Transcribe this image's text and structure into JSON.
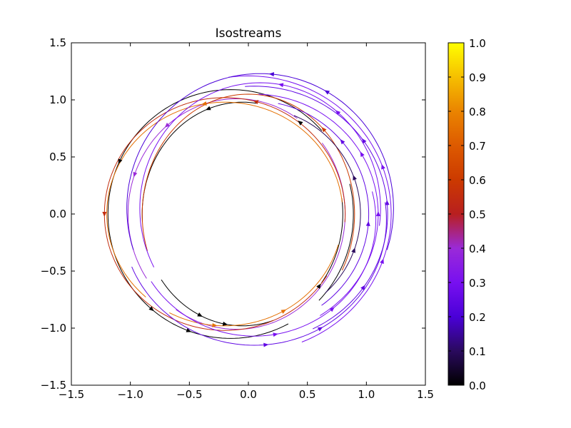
{
  "chart_data": {
    "type": "line",
    "title": "Isostreams",
    "xlabel": "",
    "ylabel": "",
    "xlim": [
      -1.5,
      1.5
    ],
    "ylim": [
      -1.5,
      1.5
    ],
    "x_ticks": [
      -1.5,
      -1.0,
      -0.5,
      0.0,
      0.5,
      1.0,
      1.5
    ],
    "y_ticks": [
      -1.5,
      -1.0,
      -0.5,
      0.0,
      0.5,
      1.0,
      1.5
    ],
    "x_tick_labels": [
      "−1.5",
      "−1.0",
      "−0.5",
      "0.0",
      "0.5",
      "1.0",
      "1.5"
    ],
    "y_tick_labels": [
      "−1.5",
      "−1.0",
      "−0.5",
      "0.0",
      "0.5",
      "1.0",
      "1.5"
    ],
    "grid": false,
    "colormap": "gnuplot",
    "colorbar": {
      "range": [
        0.0,
        1.0
      ],
      "ticks": [
        0.0,
        0.1,
        0.2,
        0.3,
        0.4,
        0.5,
        0.6,
        0.7,
        0.8,
        0.9,
        1.0
      ],
      "tick_labels": [
        "0.0",
        "0.1",
        "0.2",
        "0.3",
        "0.4",
        "0.5",
        "0.6",
        "0.7",
        "0.8",
        "0.9",
        "1.0"
      ],
      "stops": [
        {
          "v": 0.0,
          "color": "#000000"
        },
        {
          "v": 0.1,
          "color": "#2a0a5e"
        },
        {
          "v": 0.2,
          "color": "#4a00d8"
        },
        {
          "v": 0.3,
          "color": "#7810f0"
        },
        {
          "v": 0.4,
          "color": "#9a2ad8"
        },
        {
          "v": 0.5,
          "color": "#b81f1f"
        },
        {
          "v": 0.6,
          "color": "#cc3a00"
        },
        {
          "v": 0.7,
          "color": "#dd5a00"
        },
        {
          "v": 0.8,
          "color": "#ea8400"
        },
        {
          "v": 0.9,
          "color": "#f6bf00"
        },
        {
          "v": 1.0,
          "color": "#ffff00"
        }
      ]
    },
    "series": [
      {
        "cx": -0.05,
        "cy": 0.0,
        "rx": 0.85,
        "ry": 0.98,
        "gaps": [
          [
            10,
            80
          ],
          [
            185,
            215
          ],
          [
            290,
            320
          ]
        ],
        "value": 0.0,
        "arrows": [
          [
            55,
            "ccw"
          ],
          [
            110,
            "ccw"
          ],
          [
            245,
            "ccw"
          ],
          [
            260,
            "ccw"
          ],
          [
            320,
            "ccw"
          ]
        ]
      },
      {
        "cx": -0.1,
        "cy": 0.0,
        "rx": 0.92,
        "ry": 1.01,
        "gaps": [
          [
            40,
            55
          ],
          [
            215,
            235
          ]
        ],
        "value": 0.4,
        "arrows": [
          [
            130,
            "ccw"
          ],
          [
            160,
            "ccw"
          ]
        ]
      },
      {
        "cx": -0.15,
        "cy": 0.0,
        "rx": 1.04,
        "ry": 1.09,
        "gaps": [
          [
            15,
            40
          ],
          [
            300,
            315
          ]
        ],
        "value": 0.0,
        "arrows": [
          [
            155,
            "ccw"
          ],
          [
            230,
            "ccw"
          ],
          [
            250,
            "ccw"
          ]
        ]
      },
      {
        "cx": -0.2,
        "cy": 0.0,
        "rx": 1.02,
        "ry": 1.02,
        "gaps": [
          [
            330,
            355
          ]
        ],
        "value": 0.55,
        "arrows": [
          [
            180,
            "ccw"
          ],
          [
            75,
            "ccw"
          ]
        ]
      },
      {
        "cx": -0.2,
        "cy": 0.0,
        "rx": 1.0,
        "ry": 0.98,
        "gaps": [
          [
            345,
            360
          ],
          [
            0,
            5
          ],
          [
            230,
            240
          ]
        ],
        "value": 0.75,
        "arrows": [
          [
            100,
            "ccw"
          ],
          [
            265,
            "ccw"
          ],
          [
            300,
            "ccw"
          ]
        ]
      },
      {
        "cx": 0.0,
        "cy": 0.0,
        "rx": 0.9,
        "ry": 1.05,
        "gaps": [
          [
            200,
            330
          ]
        ],
        "value": 0.6,
        "arrows": [
          [
            45,
            "ccw"
          ]
        ]
      },
      {
        "cx": 0.0,
        "cy": 0.0,
        "rx": 1.21,
        "ry": 1.21,
        "gaps": [
          [
            100,
            290
          ]
        ],
        "value": 0.3,
        "arrows": [
          [
            20,
            "ccw"
          ],
          [
            340,
            "ccw"
          ]
        ]
      },
      {
        "cx": 0.05,
        "cy": 0.0,
        "rx": 1.13,
        "ry": 1.12,
        "gaps": [
          [
            95,
            295
          ]
        ],
        "value": 0.25,
        "arrows": [
          [
            5,
            "ccw"
          ],
          [
            35,
            "ccw"
          ],
          [
            325,
            "ccw"
          ]
        ]
      },
      {
        "cx": 0.05,
        "cy": 0.0,
        "rx": 1.05,
        "ry": 1.05,
        "gaps": [
          [
            90,
            300
          ]
        ],
        "value": 0.3,
        "arrows": [
          [
            0,
            "ccw"
          ],
          [
            30,
            "ccw"
          ]
        ]
      },
      {
        "cx": 0.05,
        "cy": 0.0,
        "rx": 0.97,
        "ry": 0.99,
        "gaps": [
          [
            80,
            305
          ]
        ],
        "value": 0.25,
        "arrows": [
          [
            355,
            "ccw"
          ],
          [
            40,
            "ccw"
          ]
        ]
      },
      {
        "cx": 0.05,
        "cy": 0.0,
        "rx": 0.9,
        "ry": 0.93,
        "gaps": [
          [
            70,
            310
          ]
        ],
        "value": 0.1,
        "arrows": [
          [
            20,
            "ccw"
          ],
          [
            340,
            "ccw"
          ]
        ]
      },
      {
        "cx": 0.1,
        "cy": 0.05,
        "rx": 1.13,
        "ry": 1.18,
        "gaps": [
          [
            200,
            340
          ]
        ],
        "value": 0.2,
        "arrows": [
          [
            85,
            "ccw"
          ],
          [
            60,
            "ccw"
          ]
        ]
      },
      {
        "cx": 0.1,
        "cy": 0.05,
        "rx": 1.02,
        "ry": 1.1,
        "gaps": [
          [
            210,
            350
          ]
        ],
        "value": 0.3,
        "arrows": [
          [
            80,
            "ccw"
          ],
          [
            50,
            "ccw"
          ]
        ]
      },
      {
        "cx": 0.05,
        "cy": -0.05,
        "rx": 1.12,
        "ry": 1.1,
        "gaps": [
          [
            10,
            200
          ]
        ],
        "value": 0.25,
        "arrows": [
          [
            275,
            "ccw"
          ],
          [
            300,
            "ccw"
          ]
        ]
      },
      {
        "cx": 0.05,
        "cy": -0.05,
        "rx": 1.03,
        "ry": 1.02,
        "gaps": [
          [
            15,
            210
          ]
        ],
        "value": 0.3,
        "arrows": [
          [
            280,
            "ccw"
          ],
          [
            310,
            "ccw"
          ]
        ]
      }
    ]
  }
}
